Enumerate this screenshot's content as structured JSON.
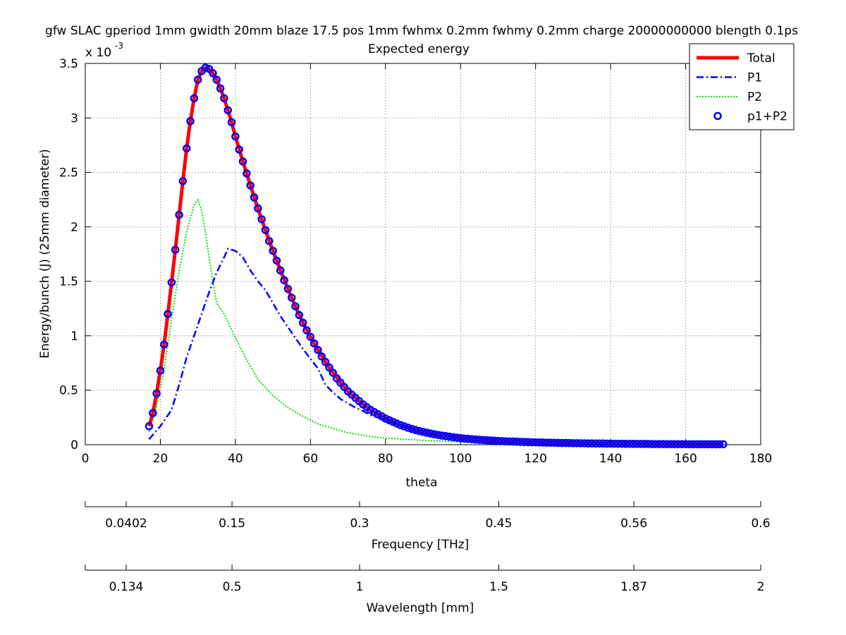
{
  "chart_data": {
    "type": "line",
    "title": "gfw SLAC gperiod 1mm gwidth 20mm blaze 17.5 pos 1mm fwhmx 0.2mm fwhmy 0.2mm charge 20000000000 blength 0.1ps",
    "subtitle": "Expected energy",
    "xlabel": "theta",
    "ylabel": "Energy/bunch (J)  (25mm diameter)",
    "y_exponent_label": "x 10",
    "y_exponent_power": "-3",
    "xlim": [
      0,
      180
    ],
    "ylim": [
      0,
      3.5
    ],
    "x_ticks": [
      "0",
      "20",
      "40",
      "60",
      "80",
      "100",
      "120",
      "140",
      "160",
      "180"
    ],
    "y_ticks": [
      "0",
      "0.5",
      "1",
      "1.5",
      "2",
      "2.5",
      "3",
      "3.5"
    ],
    "grid": true,
    "legend_position": "top-right",
    "colors": {
      "total": "#ff0000",
      "p1": "#0000ff",
      "p2": "#00e000",
      "sum_markers": "#0000ff"
    },
    "series": [
      {
        "name": "Total",
        "style": "solid-thick",
        "x": [
          17,
          18,
          19,
          20,
          21,
          22,
          23,
          24,
          25,
          26,
          27,
          28,
          29,
          30,
          31,
          32,
          33,
          34,
          35,
          36,
          37,
          38,
          39,
          40,
          42,
          44,
          46,
          48,
          50,
          52,
          54,
          56,
          58,
          60,
          62,
          64,
          66,
          68,
          70,
          72,
          74,
          76,
          78,
          80,
          84,
          88,
          92,
          96,
          100,
          105,
          110,
          115,
          120,
          125,
          130,
          140,
          150,
          160,
          170
        ],
        "y": [
          0.17,
          0.29,
          0.47,
          0.68,
          0.92,
          1.2,
          1.49,
          1.79,
          2.11,
          2.42,
          2.72,
          2.97,
          3.18,
          3.35,
          3.43,
          3.46,
          3.45,
          3.41,
          3.35,
          3.27,
          3.18,
          3.07,
          2.96,
          2.83,
          2.6,
          2.38,
          2.17,
          1.97,
          1.78,
          1.6,
          1.43,
          1.27,
          1.12,
          0.99,
          0.87,
          0.76,
          0.66,
          0.57,
          0.49,
          0.43,
          0.37,
          0.32,
          0.28,
          0.24,
          0.18,
          0.13,
          0.1,
          0.08,
          0.06,
          0.045,
          0.035,
          0.028,
          0.022,
          0.018,
          0.014,
          0.01,
          0.007,
          0.005,
          0.004
        ]
      },
      {
        "name": "P1",
        "style": "dash-dot",
        "x": [
          17,
          20,
          23,
          25,
          27,
          29,
          31,
          33,
          35,
          37,
          38,
          40,
          42,
          44,
          46,
          48,
          50,
          52,
          54,
          56,
          58,
          60,
          62,
          64,
          66,
          68,
          70,
          72,
          74,
          76,
          78,
          80,
          84,
          88,
          92,
          96,
          100,
          110,
          120,
          130,
          140,
          150,
          160,
          170
        ],
        "y": [
          0.05,
          0.17,
          0.32,
          0.55,
          0.8,
          1.0,
          1.2,
          1.4,
          1.58,
          1.72,
          1.8,
          1.78,
          1.72,
          1.6,
          1.5,
          1.42,
          1.3,
          1.18,
          1.08,
          0.98,
          0.88,
          0.79,
          0.7,
          0.55,
          0.48,
          0.42,
          0.38,
          0.34,
          0.31,
          0.27,
          0.25,
          0.22,
          0.17,
          0.13,
          0.1,
          0.08,
          0.06,
          0.035,
          0.022,
          0.014,
          0.01,
          0.007,
          0.005,
          0.004
        ]
      },
      {
        "name": "P2",
        "style": "dotted",
        "x": [
          17,
          19,
          21,
          23,
          25,
          27,
          29,
          30,
          31,
          32,
          33,
          34,
          35,
          37,
          40,
          43,
          46,
          50,
          54,
          58,
          62,
          66,
          70,
          75,
          80,
          90,
          100,
          110,
          120,
          130,
          140,
          150,
          160,
          170
        ],
        "y": [
          0.12,
          0.35,
          0.7,
          1.15,
          1.6,
          1.95,
          2.2,
          2.25,
          2.15,
          1.95,
          1.72,
          1.5,
          1.3,
          1.2,
          0.98,
          0.78,
          0.6,
          0.45,
          0.34,
          0.26,
          0.19,
          0.15,
          0.11,
          0.08,
          0.06,
          0.04,
          0.025,
          0.016,
          0.01,
          0.007,
          0.005,
          0.004,
          0.003,
          0.002
        ]
      },
      {
        "name": "p1+P2",
        "style": "circle-markers",
        "x": [
          17,
          18,
          19,
          20,
          21,
          22,
          23,
          24,
          25,
          26,
          27,
          28,
          29,
          30,
          31,
          32,
          33,
          34,
          35,
          36,
          37,
          38,
          39,
          40,
          41,
          42,
          43,
          44,
          45,
          46,
          47,
          48,
          49,
          50,
          51,
          52,
          53,
          54,
          55,
          56,
          57,
          58,
          59,
          60,
          61,
          62,
          63,
          64,
          65,
          66,
          67,
          68,
          69,
          70,
          71,
          72,
          73,
          74,
          75,
          76,
          77,
          78,
          79,
          80,
          81,
          82,
          83,
          84,
          85,
          86,
          87,
          88,
          89,
          90,
          91,
          92,
          93,
          94,
          95,
          96,
          97,
          98,
          99,
          100,
          101,
          102,
          103,
          104,
          105,
          106,
          107,
          108,
          109,
          110,
          111,
          112,
          113,
          114,
          115,
          116,
          117,
          118,
          119,
          120,
          121,
          122,
          123,
          124,
          125,
          126,
          127,
          128,
          129,
          130,
          131,
          132,
          133,
          134,
          135,
          136,
          137,
          138,
          139,
          140,
          141,
          142,
          143,
          144,
          145,
          146,
          147,
          148,
          149,
          150,
          151,
          152,
          153,
          154,
          155,
          156,
          157,
          158,
          159,
          160,
          161,
          162,
          163,
          164,
          165,
          166,
          167,
          168,
          169,
          170
        ],
        "y": [
          0.17,
          0.29,
          0.47,
          0.68,
          0.92,
          1.2,
          1.49,
          1.79,
          2.11,
          2.42,
          2.72,
          2.97,
          3.18,
          3.35,
          3.43,
          3.46,
          3.45,
          3.41,
          3.35,
          3.27,
          3.18,
          3.07,
          2.96,
          2.83,
          2.71,
          2.6,
          2.49,
          2.38,
          2.27,
          2.17,
          2.07,
          1.97,
          1.87,
          1.78,
          1.69,
          1.6,
          1.51,
          1.43,
          1.35,
          1.27,
          1.19,
          1.12,
          1.05,
          0.99,
          0.93,
          0.87,
          0.81,
          0.76,
          0.71,
          0.66,
          0.61,
          0.57,
          0.53,
          0.49,
          0.46,
          0.43,
          0.4,
          0.37,
          0.345,
          0.32,
          0.3,
          0.28,
          0.26,
          0.24,
          0.225,
          0.21,
          0.195,
          0.18,
          0.168,
          0.156,
          0.145,
          0.135,
          0.126,
          0.118,
          0.11,
          0.103,
          0.096,
          0.09,
          0.084,
          0.079,
          0.074,
          0.069,
          0.065,
          0.061,
          0.057,
          0.054,
          0.051,
          0.048,
          0.045,
          0.043,
          0.041,
          0.039,
          0.037,
          0.035,
          0.033,
          0.031,
          0.03,
          0.029,
          0.028,
          0.026,
          0.025,
          0.024,
          0.023,
          0.022,
          0.021,
          0.02,
          0.019,
          0.019,
          0.018,
          0.017,
          0.016,
          0.016,
          0.015,
          0.014,
          0.014,
          0.013,
          0.013,
          0.012,
          0.012,
          0.011,
          0.011,
          0.011,
          0.01,
          0.01,
          0.009,
          0.009,
          0.009,
          0.008,
          0.008,
          0.008,
          0.007,
          0.007,
          0.007,
          0.007,
          0.006,
          0.006,
          0.006,
          0.006,
          0.005,
          0.005,
          0.005,
          0.005,
          0.005,
          0.005,
          0.004,
          0.004,
          0.004,
          0.004,
          0.004,
          0.004,
          0.004,
          0.004,
          0.004,
          0.004
        ]
      }
    ],
    "secondary_axes": [
      {
        "label": "Frequency [THz]",
        "tick_labels": [
          "0.0402",
          "0.15",
          "0.3",
          "0.45",
          "0.56",
          "0.6"
        ],
        "tick_theta": [
          10.9,
          39.1,
          73.1,
          110.2,
          146.2,
          180
        ]
      },
      {
        "label": "Wavelength [mm]",
        "tick_labels": [
          "0.134",
          "0.5",
          "1",
          "1.5",
          "1.87",
          "2"
        ],
        "tick_theta": [
          10.9,
          39.1,
          73.1,
          110.2,
          146.2,
          180
        ]
      }
    ]
  }
}
